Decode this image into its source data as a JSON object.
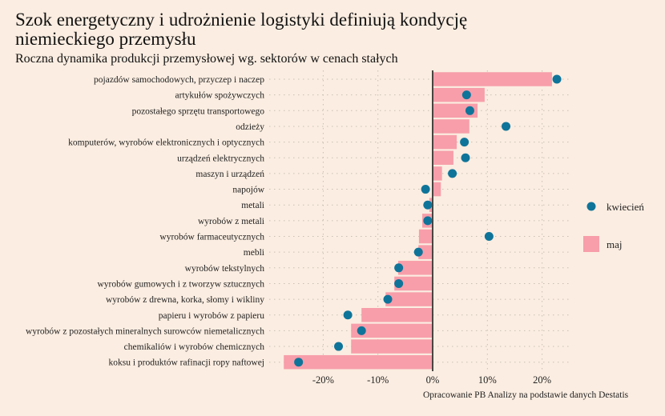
{
  "colors": {
    "background": "#FBEDE1",
    "bar": "#F79EAA",
    "dot": "#0F7499",
    "grid": "#C9BFB4",
    "zero_line": "#4a4540"
  },
  "chart_data": {
    "type": "bar",
    "orientation": "horizontal",
    "title": "Szok energetyczny i udrożnienie logistyki definiują kondycję niemieckiego przemysłu",
    "subtitle": "Roczna dynamika produkcji przemysłowej wg. sektorów w cenach stałych",
    "caption": "Opracowanie PB Analizy na podstawie danych Destatis",
    "xlabel": "",
    "ylabel": "",
    "xlim": [
      -28,
      25.5
    ],
    "x_ticks": [
      -20,
      -10,
      0,
      10,
      20
    ],
    "x_tick_labels": [
      "-20%",
      "-10%",
      "0%",
      "10%",
      "20%"
    ],
    "grid": true,
    "legend_position": "right",
    "categories": [
      "pojazdów samochodowych, przyczep i naczep",
      "artykułów spożywczych",
      "pozostałego sprzętu transportowego",
      "odzieży",
      "komputerów, wyrobów elektronicznych i optycznych",
      "urządzeń elektrycznych",
      "maszyn i urządzeń",
      "napojów",
      "metali",
      "wyrobów z metali",
      "wyrobów farmaceutycznych",
      "mebli",
      "wyrobów tekstylnych",
      "wyrobów gumowych i z tworzyw sztucznych",
      "wyrobów z drewna, korka, słomy i wikliny",
      "papieru i wyrobów z papieru",
      "wyrobów z pozostałych mineralnych surowców niemetalicznych",
      "chemikaliów i wyrobów chemicznych",
      "koksu i produktów rafinacji ropy naftowej"
    ],
    "series": [
      {
        "name": "maj",
        "mark": "bar",
        "values": [
          21.8,
          9.5,
          8.2,
          6.7,
          4.4,
          3.8,
          1.7,
          1.5,
          -0.6,
          -1.9,
          -2.5,
          -2.6,
          -6.3,
          -7.0,
          -8.6,
          -13.0,
          -14.9,
          -14.9,
          -27.2
        ]
      },
      {
        "name": "kwiecień",
        "mark": "dot",
        "values": [
          22.7,
          6.2,
          6.8,
          13.4,
          5.8,
          6.0,
          3.6,
          -1.3,
          -0.9,
          -0.9,
          10.3,
          -2.6,
          -6.2,
          -6.2,
          -8.2,
          -15.5,
          -13.0,
          -17.2,
          -24.5
        ]
      }
    ],
    "legend": [
      {
        "label": "kwiecień",
        "mark": "dot"
      },
      {
        "label": "maj",
        "mark": "bar"
      }
    ]
  }
}
